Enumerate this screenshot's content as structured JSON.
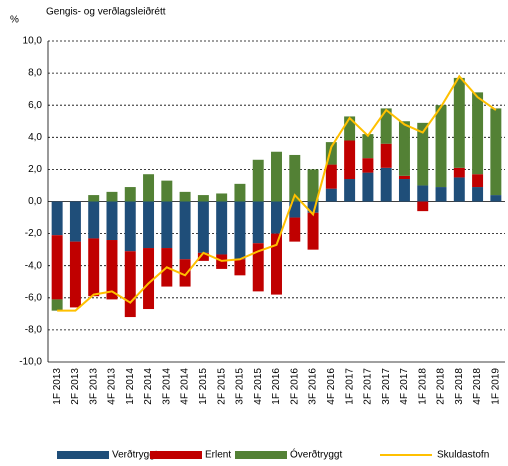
{
  "chart_data": {
    "type": "bar",
    "subtitle": "Gengis- og verðlagsleiðrétt",
    "y_label": "%",
    "categories": [
      "1F 2013",
      "2F 2013",
      "3F 2013",
      "4F 2013",
      "1F 2014",
      "2F 2014",
      "3F 2014",
      "4F 2014",
      "1F 2015",
      "2F 2015",
      "3F 2015",
      "4F 2015",
      "1F 2016",
      "2F 2016",
      "3F 2016",
      "4F 2016",
      "1F 2017",
      "2F 2017",
      "3F 2017",
      "4F 2017",
      "1F 2018",
      "2F 2018",
      "3F 2018",
      "4F 2018",
      "1F 2019"
    ],
    "series": [
      {
        "name": "Verðtryggt",
        "color": "#1f4e79",
        "values": [
          -2.1,
          -2.5,
          -2.3,
          -2.4,
          -3.1,
          -2.9,
          -2.9,
          -3.6,
          -3.2,
          -3.3,
          -3.6,
          -2.6,
          -2.0,
          -1.0,
          -0.7,
          0.8,
          1.4,
          1.8,
          2.1,
          1.4,
          1.0,
          0.9,
          1.5,
          0.9,
          0.4
        ]
      },
      {
        "name": "Erlent",
        "color": "#c00000",
        "values": [
          -4.0,
          -4.1,
          -3.6,
          -3.7,
          -4.1,
          -3.8,
          -2.4,
          -1.7,
          -0.5,
          -0.9,
          -1.0,
          -3.0,
          -3.8,
          -1.5,
          -2.3,
          1.5,
          2.4,
          0.9,
          1.5,
          0.2,
          -0.6,
          0,
          0.6,
          0.8,
          0
        ]
      },
      {
        "name": "Óverðtryggt",
        "color": "#538135",
        "values": [
          -0.7,
          0,
          0.4,
          0.6,
          0.9,
          1.7,
          1.3,
          0.6,
          0.4,
          0.5,
          1.1,
          2.6,
          3.1,
          2.9,
          2.0,
          1.4,
          1.5,
          1.5,
          2.2,
          3.4,
          3.9,
          5.1,
          5.6,
          5.1,
          5.4
        ]
      },
      {
        "name": "Skuldastofn",
        "color": "#ffc000",
        "type": "line",
        "values": [
          -6.8,
          -6.8,
          -5.8,
          -5.6,
          -6.3,
          -5.1,
          -4.1,
          -4.6,
          -3.2,
          -3.7,
          -3.6,
          -3.1,
          -2.7,
          0.4,
          -0.8,
          3.4,
          5.2,
          4.1,
          5.7,
          4.8,
          4.3,
          5.9,
          7.8,
          6.5,
          5.7
        ]
      }
    ],
    "ylim": [
      -10,
      10
    ],
    "yticks": [
      {
        "value": -10,
        "label": "-10,0"
      },
      {
        "value": -8,
        "label": "-8,0"
      },
      {
        "value": -6,
        "label": "-6,0"
      },
      {
        "value": -4,
        "label": "-4,0"
      },
      {
        "value": -2,
        "label": "-2,0"
      },
      {
        "value": 0,
        "label": "0,0"
      },
      {
        "value": 2,
        "label": "2,0"
      },
      {
        "value": 4,
        "label": "4,0"
      },
      {
        "value": 6,
        "label": "6,0"
      },
      {
        "value": 8,
        "label": "8,0"
      },
      {
        "value": 10,
        "label": "10,0"
      }
    ],
    "grid": true,
    "legend": "bottom"
  }
}
